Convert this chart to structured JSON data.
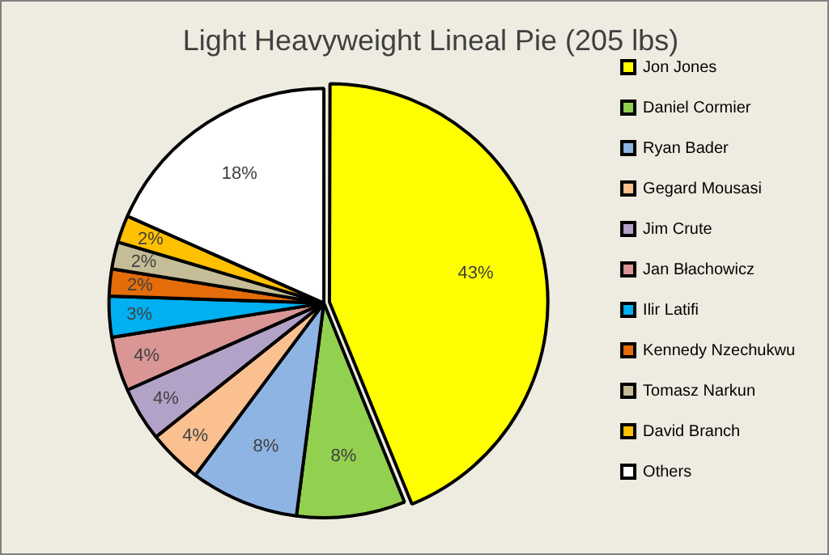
{
  "chart_data": {
    "type": "pie",
    "title": "Light Heavyweight Lineal Pie (205 lbs)",
    "categories": [
      "Jon Jones",
      "Daniel Cormier",
      "Ryan Bader",
      "Gegard Mousasi",
      "Jim Crute",
      "Jan Błachowicz",
      "Ilir Latifi",
      "Kennedy Nzechukwu",
      "Tomasz Narkun",
      "David Branch",
      "Others"
    ],
    "values": [
      43,
      8,
      8,
      4,
      4,
      4,
      3,
      2,
      2,
      2,
      18
    ],
    "colors": [
      "#ffff00",
      "#92d050",
      "#8eb4e3",
      "#fac090",
      "#b3a2c7",
      "#d99694",
      "#00b0f0",
      "#e46c0a",
      "#c4bd97",
      "#ffc000",
      "#ffffff"
    ],
    "value_labels": [
      "43%",
      "8%",
      "8%",
      "4%",
      "4%",
      "4%",
      "3%",
      "2%",
      "2%",
      "2%",
      "18%"
    ],
    "legend": "right"
  }
}
